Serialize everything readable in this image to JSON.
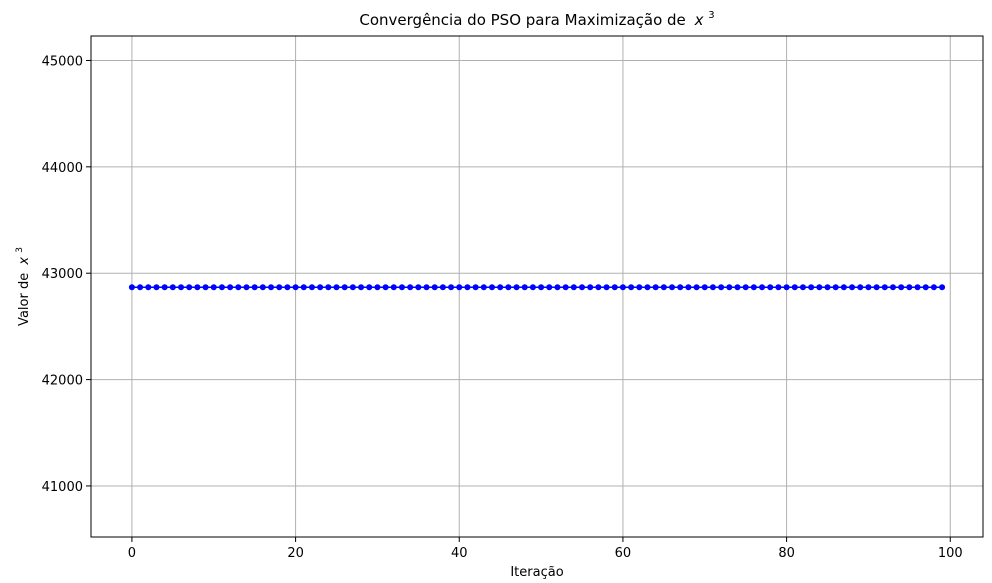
{
  "chart_data": {
    "type": "line",
    "title": "Convergência do PSO para Maximização de",
    "title_math": {
      "base": "x",
      "sup": "3"
    },
    "xlabel": "Iteração",
    "ylabel": "Valor de",
    "ylabel_math": {
      "base": "x",
      "sup": "3"
    },
    "xlim": [
      -5,
      104
    ],
    "ylim": [
      40520,
      45230
    ],
    "xticks": [
      0,
      20,
      40,
      60,
      80,
      100
    ],
    "yticks": [
      41000,
      42000,
      43000,
      44000,
      45000
    ],
    "grid": true,
    "marker": "circle",
    "series": [
      {
        "color": "#0000ff",
        "x_start": 0,
        "x_end": 99,
        "y_constant": 42868
      }
    ]
  }
}
